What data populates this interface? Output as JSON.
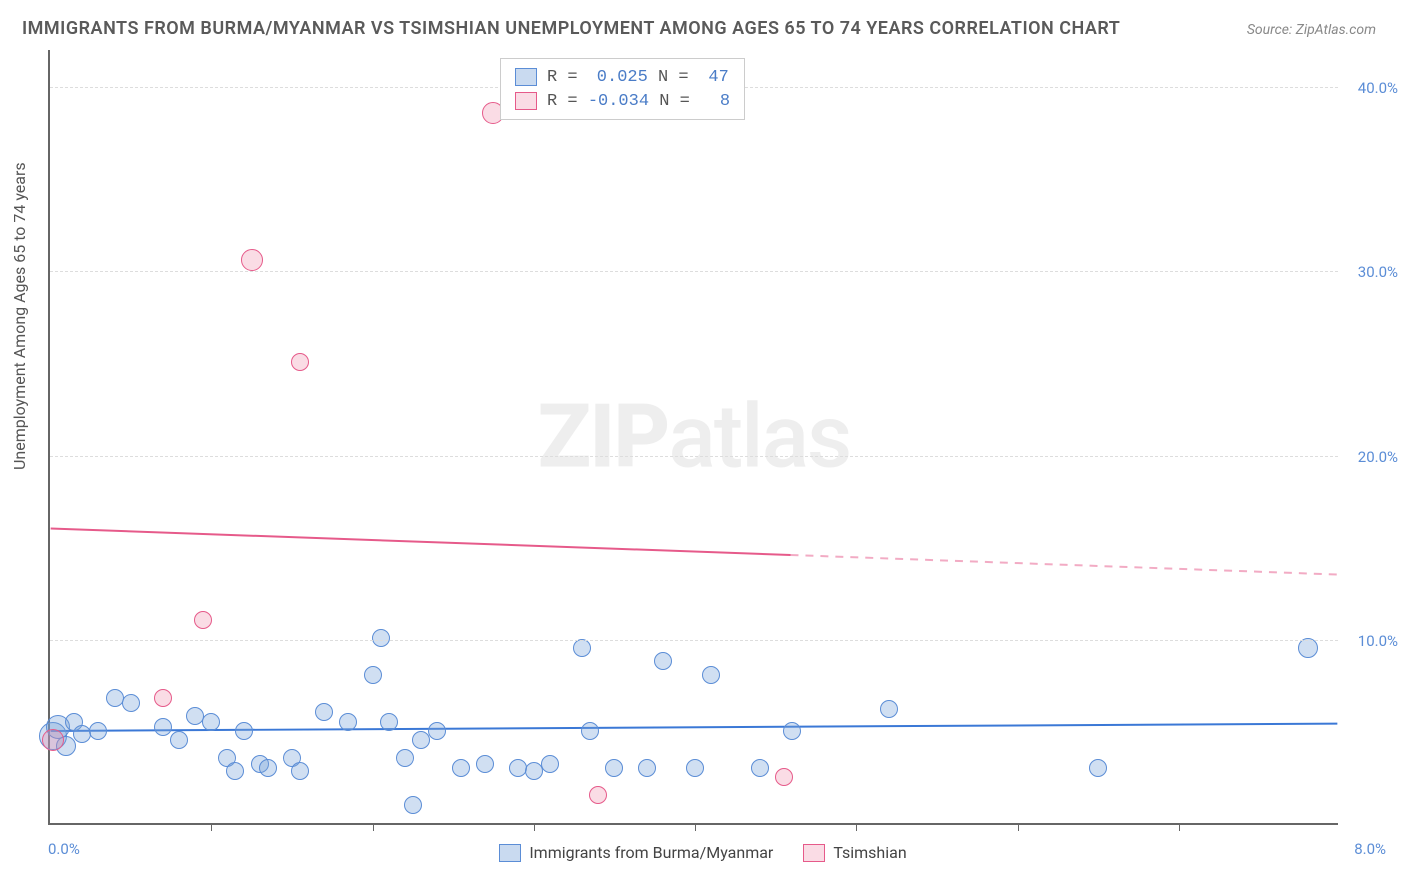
{
  "title": "IMMIGRANTS FROM BURMA/MYANMAR VS TSIMSHIAN UNEMPLOYMENT AMONG AGES 65 TO 74 YEARS CORRELATION CHART",
  "source": "Source: ZipAtlas.com",
  "ylabel": "Unemployment Among Ages 65 to 74 years",
  "watermark_zip": "ZIP",
  "watermark_atlas": "atlas",
  "chart": {
    "type": "scatter",
    "xlim": [
      0.0,
      8.0
    ],
    "ylim": [
      0.0,
      42.0
    ],
    "xticks_minor": [
      1.0,
      2.0,
      3.0,
      4.0,
      5.0,
      6.0,
      7.0
    ],
    "yticks": [
      10.0,
      20.0,
      30.0,
      40.0
    ],
    "xtick_labels": {
      "min": "0.0%",
      "max": "8.0%"
    },
    "ytick_labels": [
      "10.0%",
      "20.0%",
      "30.0%",
      "40.0%"
    ],
    "background_color": "#ffffff",
    "grid_color": "#dddddd",
    "axis_color": "#666666",
    "text_color": "#555555",
    "tick_label_color": "#5b8dd6",
    "marker_base_radius": 9,
    "series": [
      {
        "name": "Immigrants from Burma/Myanmar",
        "color_fill": "rgba(119,162,217,0.35)",
        "color_stroke": "#5b8dd6",
        "R": "0.025",
        "N": "47",
        "regression": {
          "y_at_xmin": 5.0,
          "y_at_xmax": 5.4,
          "solid_until_x": 8.0,
          "line_color": "#3b78d6",
          "line_width": 2
        },
        "points": [
          {
            "x": 0.02,
            "y": 4.7,
            "r": 14
          },
          {
            "x": 0.05,
            "y": 5.2,
            "r": 12
          },
          {
            "x": 0.1,
            "y": 4.2,
            "r": 10
          },
          {
            "x": 0.15,
            "y": 5.5,
            "r": 9
          },
          {
            "x": 0.2,
            "y": 4.8,
            "r": 9
          },
          {
            "x": 0.3,
            "y": 5.0,
            "r": 9
          },
          {
            "x": 0.4,
            "y": 6.8,
            "r": 9
          },
          {
            "x": 0.5,
            "y": 6.5,
            "r": 9
          },
          {
            "x": 0.7,
            "y": 5.2,
            "r": 9
          },
          {
            "x": 0.8,
            "y": 4.5,
            "r": 9
          },
          {
            "x": 0.9,
            "y": 5.8,
            "r": 9
          },
          {
            "x": 1.0,
            "y": 5.5,
            "r": 9
          },
          {
            "x": 1.1,
            "y": 3.5,
            "r": 9
          },
          {
            "x": 1.15,
            "y": 2.8,
            "r": 9
          },
          {
            "x": 1.2,
            "y": 5.0,
            "r": 9
          },
          {
            "x": 1.3,
            "y": 3.2,
            "r": 9
          },
          {
            "x": 1.35,
            "y": 3.0,
            "r": 9
          },
          {
            "x": 1.5,
            "y": 3.5,
            "r": 9
          },
          {
            "x": 1.55,
            "y": 2.8,
            "r": 9
          },
          {
            "x": 1.7,
            "y": 6.0,
            "r": 9
          },
          {
            "x": 1.85,
            "y": 5.5,
            "r": 9
          },
          {
            "x": 2.0,
            "y": 8.0,
            "r": 9
          },
          {
            "x": 2.05,
            "y": 10.0,
            "r": 9
          },
          {
            "x": 2.1,
            "y": 5.5,
            "r": 9
          },
          {
            "x": 2.2,
            "y": 3.5,
            "r": 9
          },
          {
            "x": 2.25,
            "y": 1.0,
            "r": 9
          },
          {
            "x": 2.3,
            "y": 4.5,
            "r": 9
          },
          {
            "x": 2.4,
            "y": 5.0,
            "r": 9
          },
          {
            "x": 2.55,
            "y": 3.0,
            "r": 9
          },
          {
            "x": 2.7,
            "y": 3.2,
            "r": 9
          },
          {
            "x": 2.9,
            "y": 3.0,
            "r": 9
          },
          {
            "x": 3.0,
            "y": 2.8,
            "r": 9
          },
          {
            "x": 3.1,
            "y": 3.2,
            "r": 9
          },
          {
            "x": 3.3,
            "y": 9.5,
            "r": 9
          },
          {
            "x": 3.35,
            "y": 5.0,
            "r": 9
          },
          {
            "x": 3.5,
            "y": 3.0,
            "r": 9
          },
          {
            "x": 3.7,
            "y": 3.0,
            "r": 9
          },
          {
            "x": 3.8,
            "y": 8.8,
            "r": 9
          },
          {
            "x": 4.0,
            "y": 3.0,
            "r": 9
          },
          {
            "x": 4.1,
            "y": 8.0,
            "r": 9
          },
          {
            "x": 4.4,
            "y": 3.0,
            "r": 9
          },
          {
            "x": 4.6,
            "y": 5.0,
            "r": 9
          },
          {
            "x": 5.2,
            "y": 6.2,
            "r": 9
          },
          {
            "x": 6.5,
            "y": 3.0,
            "r": 9
          },
          {
            "x": 7.8,
            "y": 9.5,
            "r": 10
          }
        ]
      },
      {
        "name": "Tsimshian",
        "color_fill": "rgba(240,140,170,0.30)",
        "color_stroke": "#e65a8a",
        "R": "-0.034",
        "N": "8",
        "regression": {
          "y_at_xmin": 16.0,
          "y_at_xmax": 13.5,
          "solid_until_x": 4.6,
          "line_color": "#e65a8a",
          "line_width": 2
        },
        "points": [
          {
            "x": 0.02,
            "y": 4.5,
            "r": 11
          },
          {
            "x": 0.7,
            "y": 6.8,
            "r": 9
          },
          {
            "x": 0.95,
            "y": 11.0,
            "r": 9
          },
          {
            "x": 1.25,
            "y": 30.5,
            "r": 11
          },
          {
            "x": 1.55,
            "y": 25.0,
            "r": 9
          },
          {
            "x": 2.75,
            "y": 38.5,
            "r": 11
          },
          {
            "x": 3.4,
            "y": 1.5,
            "r": 9
          },
          {
            "x": 4.55,
            "y": 2.5,
            "r": 9
          }
        ]
      }
    ]
  },
  "legend_top": {
    "rows": [
      {
        "swatch": "blue",
        "prefix": "R = ",
        "val": "0.025",
        "sep": "  N = ",
        "n": "47"
      },
      {
        "swatch": "pink",
        "prefix": "R = ",
        "val": "-0.034",
        "sep": "  N = ",
        "n": "8"
      }
    ]
  },
  "footer_legend": [
    {
      "swatch": "blue",
      "label": "Immigrants from Burma/Myanmar"
    },
    {
      "swatch": "pink",
      "label": "Tsimshian"
    }
  ]
}
